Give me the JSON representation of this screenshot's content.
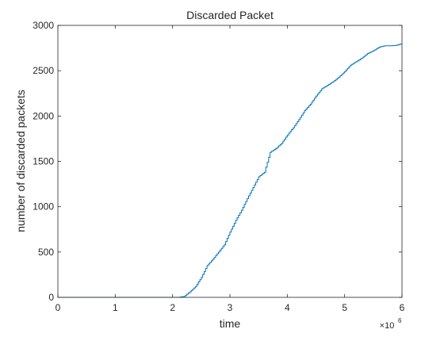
{
  "chart_data": {
    "type": "line",
    "title": "Discarded Packet",
    "xlabel": "time",
    "ylabel": "number of discarded packets",
    "x_multiplier_label": "×10",
    "x_multiplier_exponent": "6",
    "xlim": [
      0,
      6000000
    ],
    "ylim": [
      0,
      3000
    ],
    "x_ticks": [
      0,
      1000000,
      2000000,
      3000000,
      4000000,
      5000000,
      6000000
    ],
    "x_tick_labels": [
      "0",
      "1",
      "2",
      "3",
      "4",
      "5",
      "6"
    ],
    "y_ticks": [
      0,
      500,
      1000,
      1500,
      2000,
      2500,
      3000
    ],
    "y_tick_labels": [
      "0",
      "500",
      "1000",
      "1500",
      "2000",
      "2500",
      "3000"
    ],
    "grid": false,
    "legend": "none",
    "line_color": "#0072bd",
    "series": [
      {
        "x": [
          0,
          2100000,
          2200000,
          2300000,
          2400000,
          2500000,
          2600000,
          2700000,
          2800000,
          2900000,
          3000000,
          3100000,
          3200000,
          3300000,
          3400000,
          3500000,
          3600000,
          3700000,
          3800000,
          3900000,
          4000000,
          4100000,
          4200000,
          4300000,
          4400000,
          4500000,
          4600000,
          4700000,
          4800000,
          4900000,
          5000000,
          5100000,
          5200000,
          5300000,
          5400000,
          5500000,
          5600000,
          5700000,
          5800000,
          5900000,
          6000000
        ],
        "y": [
          0,
          0,
          10,
          60,
          120,
          220,
          350,
          420,
          500,
          580,
          720,
          850,
          960,
          1090,
          1210,
          1330,
          1380,
          1600,
          1640,
          1700,
          1790,
          1870,
          1960,
          2060,
          2130,
          2220,
          2300,
          2340,
          2380,
          2430,
          2490,
          2560,
          2600,
          2640,
          2690,
          2720,
          2760,
          2775,
          2775,
          2780,
          2800
        ]
      }
    ]
  }
}
